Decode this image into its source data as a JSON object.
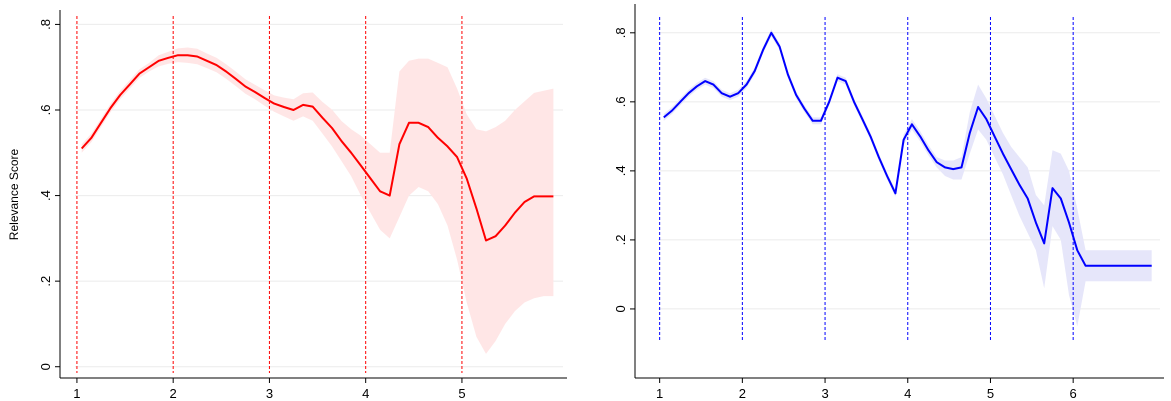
{
  "chart_data": [
    {
      "type": "line",
      "title": "",
      "xlabel": "",
      "ylabel": "Relevance Score",
      "xlim": [
        0.98,
        6.05
      ],
      "ylim": [
        -0.01,
        0.815
      ],
      "xticks": [
        1,
        2,
        3,
        4,
        5
      ],
      "xtick_labels": [
        "1",
        "2",
        "3",
        "4",
        "5"
      ],
      "yticks": [
        0,
        0.2,
        0.4,
        0.6,
        0.8
      ],
      "ytick_labels": [
        "0",
        ".2",
        ".4",
        ".6",
        ".8"
      ],
      "vlines": [
        1,
        2,
        3,
        4,
        5
      ],
      "colors": {
        "line": "#ff0000",
        "band": "#ffe6e6",
        "vline": "#ff0000",
        "grid": "#ebebeb"
      },
      "grid": true,
      "series": [
        {
          "x": [
            1.05,
            1.15,
            1.25,
            1.35,
            1.45,
            1.55,
            1.65,
            1.75,
            1.85,
            1.95,
            2.05,
            2.15,
            2.25,
            2.35,
            2.45,
            2.55,
            2.65,
            2.75,
            2.85,
            2.95,
            3.05,
            3.15,
            3.25,
            3.35,
            3.45,
            3.55,
            3.65,
            3.75,
            3.85,
            3.95,
            4.05,
            4.15,
            4.25,
            4.35,
            4.45,
            4.55,
            4.65,
            4.75,
            4.85,
            4.95,
            5.05,
            5.15,
            5.25,
            5.35,
            5.45,
            5.55,
            5.65,
            5.75,
            5.85,
            5.95
          ],
          "y": [
            0.51,
            0.535,
            0.57,
            0.605,
            0.635,
            0.66,
            0.685,
            0.7,
            0.715,
            0.722,
            0.728,
            0.728,
            0.725,
            0.715,
            0.705,
            0.69,
            0.673,
            0.655,
            0.642,
            0.628,
            0.615,
            0.607,
            0.6,
            0.612,
            0.608,
            0.582,
            0.558,
            0.527,
            0.5,
            0.47,
            0.44,
            0.41,
            0.4,
            0.52,
            0.57,
            0.57,
            0.56,
            0.535,
            0.515,
            0.49,
            0.44,
            0.37,
            0.295,
            0.305,
            0.33,
            0.36,
            0.385,
            0.398,
            0.398,
            0.398
          ],
          "lower": [
            0.5,
            0.525,
            0.56,
            0.595,
            0.625,
            0.65,
            0.675,
            0.69,
            0.702,
            0.708,
            0.712,
            0.71,
            0.707,
            0.698,
            0.688,
            0.673,
            0.656,
            0.638,
            0.625,
            0.61,
            0.596,
            0.585,
            0.575,
            0.585,
            0.575,
            0.545,
            0.515,
            0.48,
            0.445,
            0.4,
            0.36,
            0.32,
            0.3,
            0.35,
            0.4,
            0.42,
            0.41,
            0.38,
            0.33,
            0.25,
            0.15,
            0.07,
            0.03,
            0.06,
            0.1,
            0.13,
            0.15,
            0.16,
            0.165,
            0.165
          ],
          "upper": [
            0.52,
            0.545,
            0.58,
            0.615,
            0.645,
            0.67,
            0.695,
            0.71,
            0.728,
            0.736,
            0.744,
            0.746,
            0.743,
            0.732,
            0.722,
            0.707,
            0.69,
            0.672,
            0.659,
            0.646,
            0.634,
            0.629,
            0.625,
            0.639,
            0.641,
            0.619,
            0.601,
            0.574,
            0.555,
            0.54,
            0.52,
            0.5,
            0.5,
            0.69,
            0.715,
            0.72,
            0.72,
            0.71,
            0.7,
            0.65,
            0.59,
            0.555,
            0.55,
            0.56,
            0.575,
            0.6,
            0.62,
            0.64,
            0.645,
            0.65
          ]
        }
      ]
    },
    {
      "type": "line",
      "title": "",
      "xlabel": "",
      "ylabel": "",
      "xlim": [
        0.98,
        7.05
      ],
      "ylim": [
        -0.09,
        0.84
      ],
      "xticks": [
        1,
        2,
        3,
        4,
        5,
        6
      ],
      "xtick_labels": [
        "1",
        "2",
        "3",
        "4",
        "5",
        "6"
      ],
      "yticks": [
        0,
        0.2,
        0.4,
        0.6,
        0.8
      ],
      "ytick_labels": [
        "0",
        ".2",
        ".4",
        ".6",
        ".8"
      ],
      "vlines": [
        1,
        2,
        3,
        4,
        5,
        6
      ],
      "colors": {
        "line": "#0000ff",
        "band": "#e6e6fa",
        "vline": "#0000ff",
        "grid": "#ebebeb"
      },
      "grid": true,
      "series": [
        {
          "x": [
            1.05,
            1.15,
            1.25,
            1.35,
            1.45,
            1.55,
            1.65,
            1.75,
            1.85,
            1.95,
            2.05,
            2.15,
            2.25,
            2.35,
            2.45,
            2.55,
            2.65,
            2.75,
            2.85,
            2.95,
            3.05,
            3.15,
            3.25,
            3.35,
            3.45,
            3.55,
            3.65,
            3.75,
            3.85,
            3.95,
            4.05,
            4.15,
            4.25,
            4.35,
            4.45,
            4.55,
            4.65,
            4.75,
            4.85,
            4.95,
            5.05,
            5.15,
            5.25,
            5.35,
            5.45,
            5.55,
            5.65,
            5.75,
            5.85,
            5.95,
            6.05,
            6.15,
            6.25,
            6.35,
            6.45,
            6.55,
            6.65,
            6.75,
            6.85,
            6.95
          ],
          "y": [
            0.555,
            0.575,
            0.6,
            0.625,
            0.645,
            0.66,
            0.65,
            0.625,
            0.615,
            0.625,
            0.65,
            0.69,
            0.75,
            0.8,
            0.76,
            0.68,
            0.62,
            0.58,
            0.545,
            0.545,
            0.6,
            0.67,
            0.66,
            0.6,
            0.55,
            0.5,
            0.44,
            0.385,
            0.335,
            0.49,
            0.535,
            0.5,
            0.46,
            0.425,
            0.41,
            0.405,
            0.41,
            0.51,
            0.585,
            0.55,
            0.5,
            0.45,
            0.405,
            0.36,
            0.32,
            0.25,
            0.19,
            0.35,
            0.32,
            0.25,
            0.17,
            0.125,
            0.125,
            0.125,
            0.125,
            0.125,
            0.125,
            0.125,
            0.125,
            0.125
          ],
          "lower": [
            0.545,
            0.565,
            0.59,
            0.615,
            0.635,
            0.65,
            0.64,
            0.615,
            0.605,
            0.615,
            0.64,
            0.68,
            0.74,
            0.79,
            0.75,
            0.67,
            0.61,
            0.57,
            0.535,
            0.535,
            0.59,
            0.66,
            0.65,
            0.59,
            0.54,
            0.49,
            0.43,
            0.375,
            0.325,
            0.475,
            0.52,
            0.485,
            0.445,
            0.41,
            0.385,
            0.375,
            0.375,
            0.45,
            0.52,
            0.49,
            0.44,
            0.39,
            0.33,
            0.27,
            0.22,
            0.17,
            0.06,
            0.24,
            0.2,
            0.04,
            -0.05,
            0.08,
            0.08,
            0.08,
            0.08,
            0.08,
            0.08,
            0.08,
            0.08,
            0.08
          ],
          "upper": [
            0.565,
            0.585,
            0.61,
            0.635,
            0.655,
            0.67,
            0.66,
            0.635,
            0.625,
            0.635,
            0.66,
            0.7,
            0.76,
            0.81,
            0.77,
            0.69,
            0.63,
            0.59,
            0.555,
            0.555,
            0.61,
            0.68,
            0.67,
            0.61,
            0.56,
            0.51,
            0.45,
            0.395,
            0.345,
            0.505,
            0.55,
            0.515,
            0.475,
            0.44,
            0.43,
            0.43,
            0.44,
            0.57,
            0.65,
            0.61,
            0.56,
            0.51,
            0.47,
            0.44,
            0.41,
            0.33,
            0.3,
            0.46,
            0.45,
            0.4,
            0.29,
            0.17,
            0.17,
            0.17,
            0.17,
            0.17,
            0.17,
            0.17,
            0.17,
            0.17
          ]
        }
      ]
    }
  ]
}
